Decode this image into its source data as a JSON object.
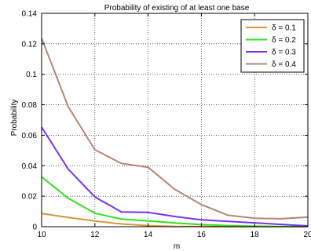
{
  "chart_data": {
    "type": "line",
    "title": "Probability of existing of at least one base",
    "xlabel": "m",
    "ylabel": "Probability",
    "xlim": [
      10,
      20
    ],
    "ylim": [
      0,
      0.14
    ],
    "xticks": [
      10,
      12,
      14,
      16,
      18,
      20
    ],
    "yticks": [
      0,
      0.02,
      0.04,
      0.06,
      0.08,
      0.1,
      0.12,
      0.14
    ],
    "x": [
      10,
      11,
      12,
      13,
      14,
      15,
      16,
      17,
      18,
      19,
      20
    ],
    "grid": true,
    "legend_position": "top-right",
    "series": [
      {
        "name": "δ = 0.1",
        "color": "#d4983a",
        "values": [
          0.0087,
          0.006,
          0.0037,
          0.0018,
          0.0007,
          0.0002,
          0.0001,
          0.0,
          0.0,
          0.0,
          0.0
        ]
      },
      {
        "name": "δ = 0.2",
        "color": "#33dd22",
        "values": [
          0.0327,
          0.0187,
          0.0088,
          0.005,
          0.0038,
          0.0024,
          0.0014,
          0.0007,
          0.0003,
          0.0001,
          0.0
        ]
      },
      {
        "name": "δ = 0.3",
        "color": "#7733ee",
        "values": [
          0.0653,
          0.0378,
          0.0195,
          0.0097,
          0.0094,
          0.0067,
          0.0045,
          0.0035,
          0.0025,
          0.0015,
          0.0005
        ]
      },
      {
        "name": "δ = 0.4",
        "color": "#b38576",
        "values": [
          0.1237,
          0.0787,
          0.0505,
          0.0415,
          0.039,
          0.0245,
          0.0145,
          0.0075,
          0.0055,
          0.0052,
          0.0063
        ]
      }
    ]
  }
}
